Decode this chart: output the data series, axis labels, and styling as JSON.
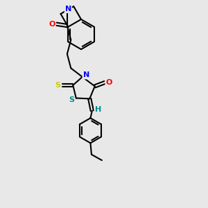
{
  "background_color": "#e8e8e8",
  "atom_colors": {
    "N": "#0000FF",
    "O": "#FF0000",
    "S_thioxo": "#CCCC00",
    "S_thiazolidine": "#CCCC00",
    "S_ring": "#008B8B",
    "H": "#008B8B",
    "C": "#000000"
  },
  "bond_color": "#000000",
  "bond_width": 1.5
}
